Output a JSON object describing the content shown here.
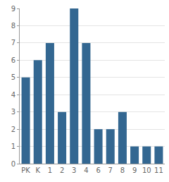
{
  "chart_data": {
    "type": "bar",
    "categories": [
      "PK",
      "K",
      "1",
      "2",
      "3",
      "4",
      "6",
      "7",
      "8",
      "9",
      "10",
      "11"
    ],
    "values": [
      5,
      6,
      7,
      3,
      9,
      7,
      2,
      2,
      3,
      1,
      1,
      1
    ],
    "color": "#336791",
    "ylim": [
      0,
      9
    ],
    "yticks": [
      0,
      1,
      2,
      3,
      4,
      5,
      6,
      7,
      8,
      9
    ],
    "grid": true
  }
}
